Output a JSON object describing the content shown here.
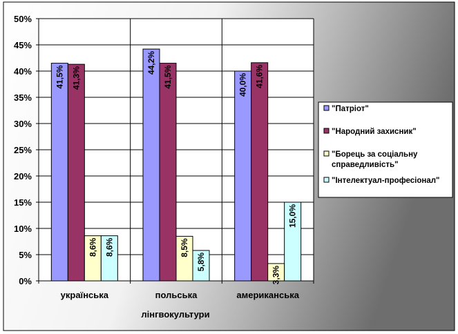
{
  "chart_data": {
    "type": "bar",
    "categories": [
      "українська",
      "польська",
      "американська"
    ],
    "xlabel": "лінгвокультури",
    "ylabel": "",
    "ylim": [
      0,
      50
    ],
    "y_ticks": [
      "0%",
      "5%",
      "10%",
      "15%",
      "20%",
      "25%",
      "30%",
      "35%",
      "40%",
      "45%",
      "50%"
    ],
    "grid": true,
    "legend_position": "right",
    "series": [
      {
        "name": "\"Патріот\"",
        "color": "#9999ff",
        "values": [
          41.5,
          44.2,
          40.0
        ],
        "labels": [
          "41,5%",
          "44,2%",
          "40,0%"
        ]
      },
      {
        "name": "\"Народний захисник\"",
        "color": "#993366",
        "values": [
          41.3,
          41.5,
          41.6
        ],
        "labels": [
          "41,3%",
          "41,5%",
          "41,6%"
        ]
      },
      {
        "name": "\"Борець за соціальну справедливість\"",
        "color": "#ffffcc",
        "values": [
          8.6,
          8.5,
          3.3
        ],
        "labels": [
          "8,6%",
          "8,5%",
          "3,3%"
        ]
      },
      {
        "name": "\"Інтелектуал-професіонал\"",
        "color": "#ccffff",
        "values": [
          8.6,
          5.8,
          15.0
        ],
        "labels": [
          "8,6%",
          "5,8%",
          "15,0%"
        ]
      }
    ]
  }
}
